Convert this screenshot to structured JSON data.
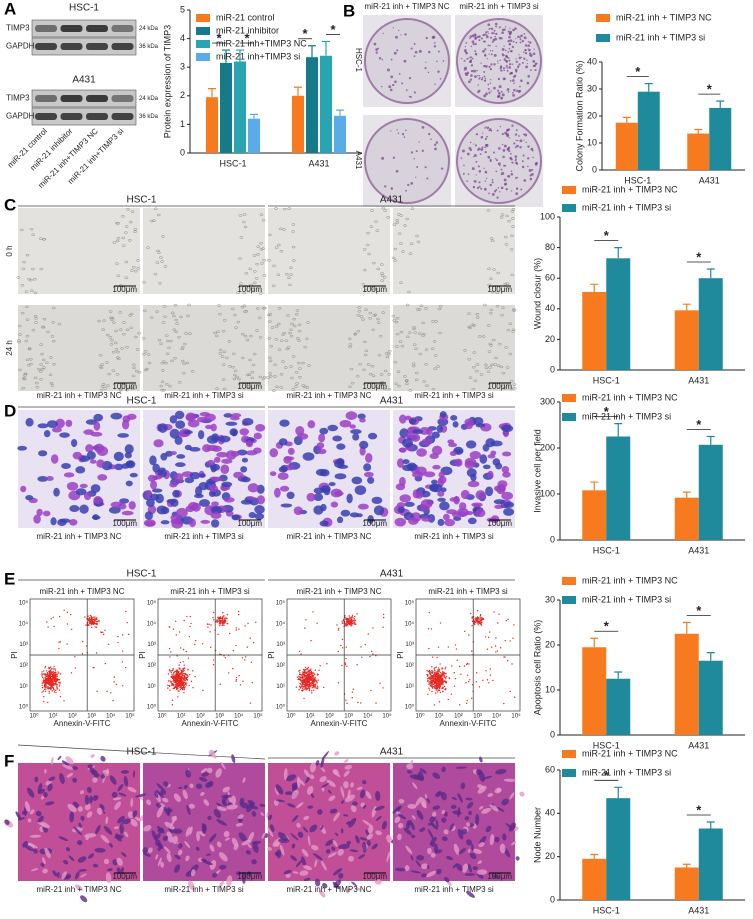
{
  "chart_data": [
    {
      "type": "bar",
      "ylabel": "Protein expression of TIMP3",
      "categories": [
        "HSC-1",
        "A431"
      ],
      "series": [
        {
          "name": "miR-21 control",
          "color": "#f77b1e",
          "values": [
            1.95,
            2.0
          ],
          "errors": [
            0.3,
            0.3
          ]
        },
        {
          "name": "miR-21 inhibitor",
          "color": "#167a8a",
          "values": [
            3.15,
            3.35
          ],
          "errors": [
            0.45,
            0.4
          ]
        },
        {
          "name": "miR-21 inh+TIMP3 NC",
          "color": "#28a5b0",
          "values": [
            3.2,
            3.4
          ],
          "errors": [
            0.4,
            0.5
          ]
        },
        {
          "name": "miR-21 inh+TIMP3 si",
          "color": "#5aace8",
          "values": [
            1.2,
            1.3
          ],
          "errors": [
            0.15,
            0.2
          ]
        }
      ],
      "ylim": [
        0,
        5
      ],
      "yticks": [
        0,
        1,
        2,
        3,
        4,
        5
      ],
      "annotations": [
        "*",
        "*",
        "*",
        "*"
      ]
    },
    {
      "type": "bar",
      "ylabel": "Colony Formation Ratio (%)",
      "categories": [
        "HSC-1",
        "A431"
      ],
      "series": [
        {
          "name": "miR-21 inh + TIMP3 NC",
          "color": "#f77b1e",
          "values": [
            17.5,
            13.5
          ],
          "errors": [
            2,
            1.5
          ]
        },
        {
          "name": "miR-21 inh + TIMP3 si",
          "color": "#1f8a9c",
          "values": [
            29,
            23
          ],
          "errors": [
            3,
            2.5
          ]
        }
      ],
      "ylim": [
        0,
        40
      ],
      "yticks": [
        0,
        10,
        20,
        30,
        40
      ],
      "annotations": [
        "*",
        "*"
      ]
    },
    {
      "type": "bar",
      "ylabel": "Wound closur (%)",
      "categories": [
        "HSC-1",
        "A431"
      ],
      "series": [
        {
          "name": "miR-21 inh + TIMP3 NC",
          "color": "#f77b1e",
          "values": [
            51,
            39
          ],
          "errors": [
            5,
            4
          ]
        },
        {
          "name": "miR-21 inh + TIMP3 si",
          "color": "#1f8a9c",
          "values": [
            73,
            60
          ],
          "errors": [
            7,
            6
          ]
        }
      ],
      "ylim": [
        0,
        100
      ],
      "yticks": [
        0,
        20,
        40,
        60,
        80,
        100
      ],
      "annotations": [
        "*",
        "*"
      ]
    },
    {
      "type": "bar",
      "ylabel": "Invasive cell per field",
      "categories": [
        "HSC-1",
        "A431"
      ],
      "series": [
        {
          "name": "miR-21 inh + TIMP3 NC",
          "color": "#f77b1e",
          "values": [
            108,
            92
          ],
          "errors": [
            18,
            12
          ]
        },
        {
          "name": "miR-21 inh + TIMP3 si",
          "color": "#1f8a9c",
          "values": [
            225,
            207
          ],
          "errors": [
            28,
            18
          ]
        }
      ],
      "ylim": [
        0,
        300
      ],
      "yticks": [
        0,
        100,
        200,
        300
      ],
      "annotations": [
        "*",
        "*"
      ]
    },
    {
      "type": "bar",
      "ylabel": "Apoptosis cell Ratio (%)",
      "categories": [
        "HSC-1",
        "A431"
      ],
      "series": [
        {
          "name": "miR-21 inh + TIMP3 NC",
          "color": "#f77b1e",
          "values": [
            19.5,
            22.5
          ],
          "errors": [
            2,
            2.5
          ]
        },
        {
          "name": "miR-21 inh + TIMP3 si",
          "color": "#1f8a9c",
          "values": [
            12.5,
            16.5
          ],
          "errors": [
            1.5,
            1.8
          ]
        }
      ],
      "ylim": [
        0,
        30
      ],
      "yticks": [
        0,
        10,
        20,
        30
      ],
      "annotations": [
        "*",
        "*"
      ]
    },
    {
      "type": "bar",
      "ylabel": "Node Number",
      "categories": [
        "HSC-1",
        "A431"
      ],
      "series": [
        {
          "name": "miR-21 inh + TIMP3 NC",
          "color": "#f77b1e",
          "values": [
            19,
            15
          ],
          "errors": [
            2,
            1.5
          ]
        },
        {
          "name": "miR-21 inh + TIMP3 si",
          "color": "#1f8a9c",
          "values": [
            47,
            33
          ],
          "errors": [
            5,
            3
          ]
        }
      ],
      "ylim": [
        0,
        60
      ],
      "yticks": [
        0,
        20,
        40,
        60
      ],
      "annotations": [
        "*",
        "*"
      ]
    }
  ],
  "letters": [
    "A",
    "B",
    "C",
    "D",
    "E",
    "F"
  ],
  "blot": {
    "cell_lines": [
      "HSC-1",
      "A431"
    ],
    "proteins": [
      "TIMP3",
      "GAPDH"
    ],
    "sizes": [
      "24 kDa",
      "36 kDa"
    ],
    "lanes": [
      "miR-21 control",
      "miR-21 inhibitor",
      "miR-21 inh+TIMP3 NC",
      "miR-21 inh+TIMP3 si"
    ]
  },
  "colony": {
    "columns": [
      "miR-21 inh + TIMP3 NC",
      "miR-21 inh + TIMP3 si"
    ],
    "rows": [
      "HSC-1",
      "A431"
    ]
  },
  "wound": {
    "groups": [
      "HSC-1",
      "A431"
    ],
    "rows": [
      "0 h",
      "24 h"
    ],
    "captions": [
      "miR-21 inh + TIMP3 NC",
      "miR-21 inh + TIMP3 si",
      "miR-21 inh + TIMP3 NC",
      "miR-21 inh + TIMP3 si"
    ],
    "scale": "100μm"
  },
  "invasion": {
    "groups": [
      "HSC-1",
      "A431"
    ],
    "captions": [
      "miR-21 inh + TIMP3 NC",
      "miR-21 inh + TIMP3 si",
      "miR-21 inh + TIMP3 NC",
      "miR-21 inh + TIMP3 si"
    ],
    "scale": "100μm"
  },
  "flow": {
    "groups": [
      "HSC-1",
      "A431"
    ],
    "titles": [
      "miR-21 inh + TIMP3 NC",
      "miR-21 inh + TIMP3 si",
      "miR-21 inh + TIMP3 NC",
      "miR-21 inh + TIMP3 si"
    ],
    "ylabel": "PI",
    "xlabel": "Annexin-V-FITC",
    "ticks": [
      "10⁰",
      "10¹",
      "10²",
      "10³",
      "10⁴",
      "10⁵"
    ]
  },
  "nodes": {
    "groups": [
      "HSC-1",
      "A431"
    ],
    "captions": [
      "miR-21 inh + TIMP3 NC",
      "miR-21 inh + TIMP3 si",
      "miR-21 inh + TIMP3 NC",
      "miR-21 inh + TIMP3 si"
    ],
    "scale": "100μm"
  }
}
